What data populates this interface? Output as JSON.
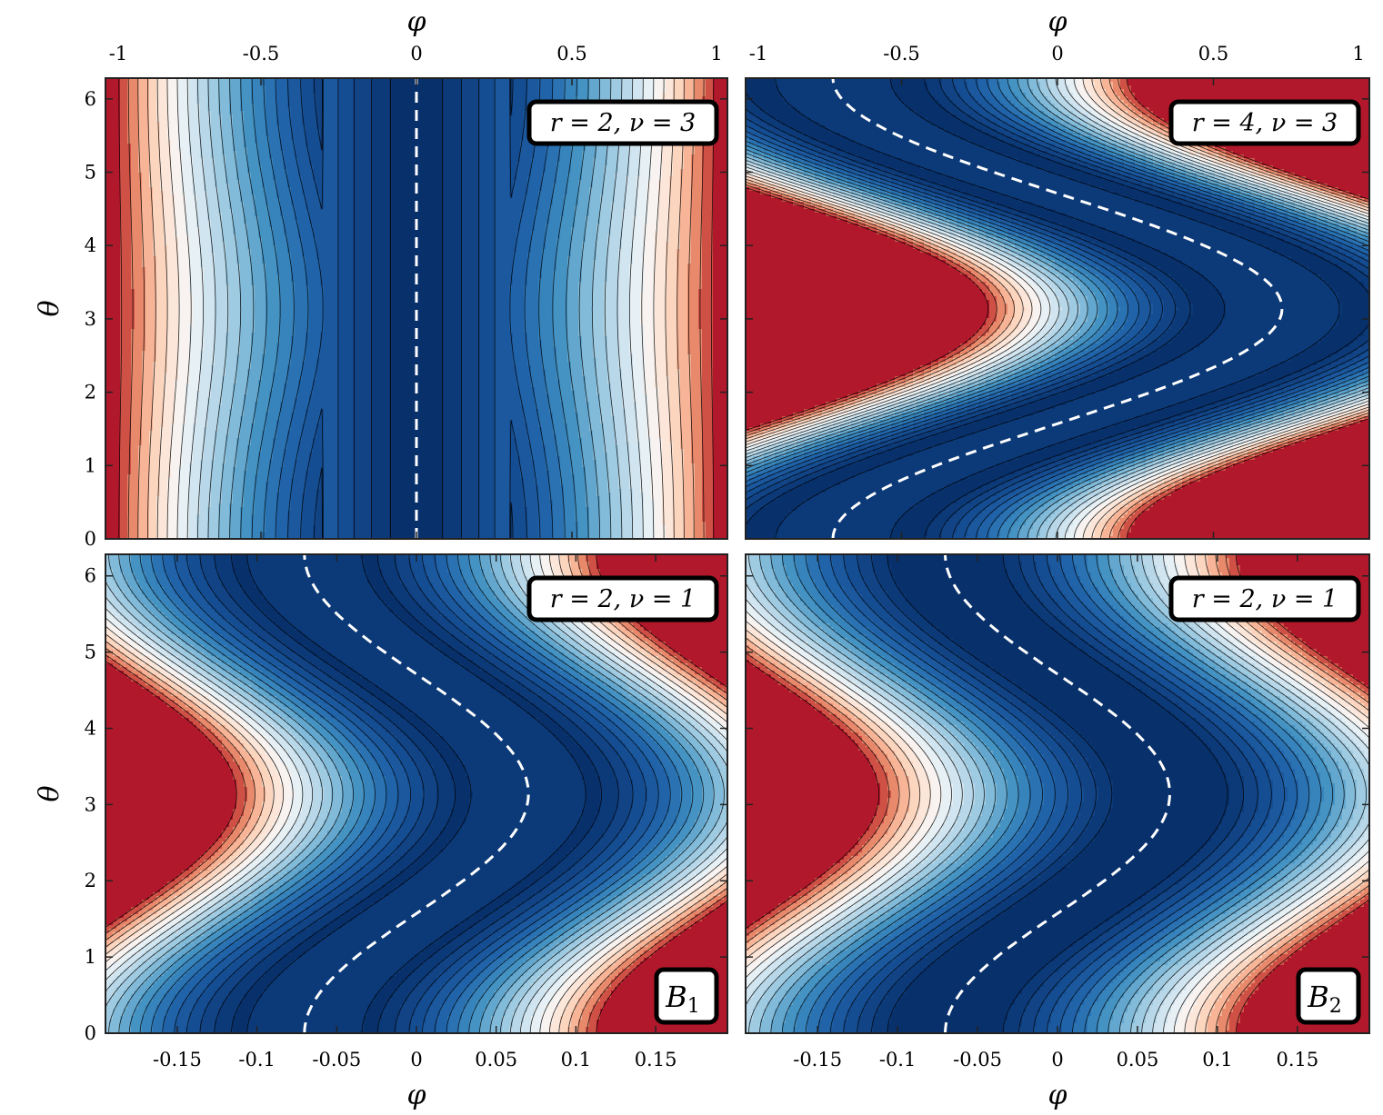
{
  "chart_data": [
    {
      "type": "contour",
      "panel": "top-left",
      "annotation": "r = 2, ν = 3",
      "params": {
        "r": 2,
        "nu": 3
      },
      "xlabel": "φ",
      "ylabel": "θ",
      "x_axis_position": "top",
      "xticks": [
        "-1",
        "-0.5",
        "0",
        "0.5",
        "1"
      ],
      "xlim": [
        -1,
        1
      ],
      "yticks": [
        "0",
        "1",
        "2",
        "3",
        "4",
        "5",
        "6"
      ],
      "ylim": [
        0,
        6.283
      ],
      "dashed_curve": "vertical line at φ = 0",
      "colormap": "RdBu reversed (dark blue low, dark red high)"
    },
    {
      "type": "contour",
      "panel": "top-right",
      "annotation": "r = 4, ν = 3",
      "params": {
        "r": 4,
        "nu": 3
      },
      "xlabel": "φ",
      "x_axis_position": "top",
      "xticks": [
        "-1",
        "-0.5",
        "0",
        "0.5",
        "1"
      ],
      "xlim": [
        -1,
        1
      ],
      "ylim": [
        0,
        6.283
      ],
      "dashed_curve": "S-shaped curve from φ ≈ -0.7 (θ = 0) through φ ≈ 0.7 (θ = π) back to φ ≈ -0.7 (θ = 2π)",
      "colormap": "RdBu reversed"
    },
    {
      "type": "contour",
      "panel": "bottom-left",
      "annotation": "r = 2, ν = 1",
      "label": "B1",
      "params": {
        "r": 2,
        "nu": 1
      },
      "xlabel": "φ",
      "ylabel": "θ",
      "x_axis_position": "bottom",
      "xticks": [
        "-0.15",
        "-0.1",
        "-0.05",
        "0",
        "0.05",
        "0.1",
        "0.15"
      ],
      "xlim": [
        -0.195,
        0.195
      ],
      "yticks": [
        "0",
        "1",
        "2",
        "3",
        "4",
        "5",
        "6"
      ],
      "ylim": [
        0,
        6.283
      ],
      "dashed_curve": "S-shaped curve from φ ≈ -0.07 (θ = 0) through φ ≈ 0.07 (θ = π) back to φ ≈ -0.07 (θ = 2π)",
      "colormap": "RdBu reversed"
    },
    {
      "type": "contour",
      "panel": "bottom-right",
      "annotation": "r = 2, ν = 1",
      "label": "B2",
      "params": {
        "r": 2,
        "nu": 1
      },
      "xlabel": "φ",
      "x_axis_position": "bottom",
      "xticks": [
        "-0.15",
        "-0.1",
        "-0.05",
        "0",
        "0.05",
        "0.1",
        "0.15"
      ],
      "xlim": [
        -0.195,
        0.195
      ],
      "ylim": [
        0,
        6.283
      ],
      "dashed_curve": "S-shaped curve from φ ≈ -0.07 (θ = 0) through φ ≈ 0.07 (θ = π) back to φ ≈ -0.07 (θ = 2π)",
      "colormap": "RdBu reversed"
    }
  ],
  "colors": {
    "low": "#08306b",
    "mid": "#f7f7f7",
    "high": "#b2182b",
    "dashed": "#ffffff"
  }
}
